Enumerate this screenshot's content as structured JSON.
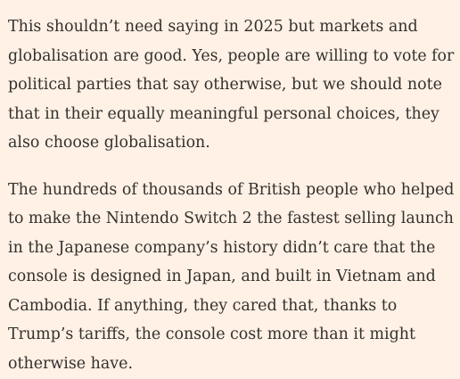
{
  "article": {
    "paragraphs": [
      {
        "lines": [
          "This shouldn’t need saying in 2025 but markets and",
          "globalisation are good. Yes, people are willing to vote for",
          "political parties that say otherwise, but we should note",
          "that in their equally meaningful personal choices, they",
          "also choose globalisation."
        ]
      },
      {
        "lines": [
          "The hundreds of thousands of British people who helped",
          "to make the Nintendo Switch 2 the fastest selling launch",
          "in the Japanese company’s history didn’t care that the",
          "console is designed in Japan, and built in Vietnam and",
          "Cambodia. If anything, they cared that, thanks to",
          "Trump’s tariffs, the console cost more than it might",
          "otherwise have."
        ]
      }
    ]
  }
}
